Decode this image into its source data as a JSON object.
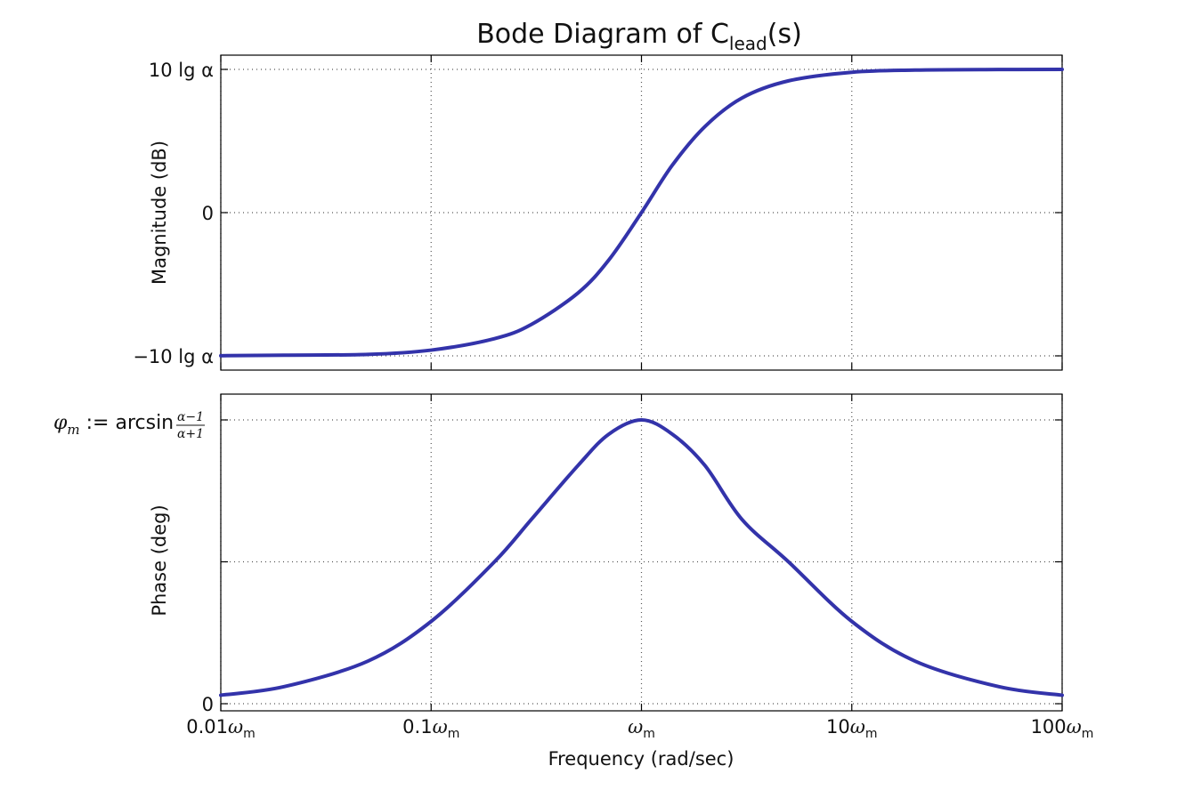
{
  "chart_data": {
    "type": "line",
    "title": "Bode Diagram of C",
    "title_subscript": "lead",
    "title_suffix": "(s)",
    "xlabel": "Frequency (rad/sec)",
    "x_scale": "log",
    "xlim": [
      0.01,
      100
    ],
    "x_ticks": [
      0.01,
      0.1,
      1,
      10,
      100
    ],
    "x_tick_labels": [
      {
        "num": "0.01",
        "sym": "ω",
        "sub": "m"
      },
      {
        "num": "0.1",
        "sym": "ω",
        "sub": "m"
      },
      {
        "num": "",
        "sym": "ω",
        "sub": "m"
      },
      {
        "num": "10",
        "sym": "ω",
        "sub": "m"
      },
      {
        "num": "100",
        "sym": "ω",
        "sub": "m"
      }
    ],
    "grid": true,
    "color": "#3333aa",
    "panels": [
      {
        "name": "magnitude",
        "ylabel": "Magnitude (dB)",
        "ylim": [
          -1,
          1
        ],
        "y_ticks": [
          -1,
          0,
          1
        ],
        "y_tick_labels": [
          "−10 lg α",
          "0",
          "10 lg α"
        ],
        "x": [
          0.01,
          0.02,
          0.05,
          0.1,
          0.2,
          0.3,
          0.5,
          0.7,
          1,
          1.4,
          2,
          3,
          5,
          10,
          20,
          50,
          100
        ],
        "y": [
          -0.999,
          -0.995,
          -0.99,
          -0.96,
          -0.88,
          -0.78,
          -0.56,
          -0.33,
          0,
          0.33,
          0.6,
          0.8,
          0.92,
          0.98,
          0.995,
          0.999,
          1.0
        ]
      },
      {
        "name": "phase",
        "ylabel": "Phase (deg)",
        "ylim": [
          0,
          1
        ],
        "y_ticks": [
          0,
          0.5,
          1
        ],
        "y_tick_labels": [
          "0",
          "",
          ""
        ],
        "annotation": {
          "phi": "φ",
          "sub": "m",
          "assign": " := arcsin ",
          "numerator": "α−1",
          "denominator": "α+1"
        },
        "x": [
          0.01,
          0.02,
          0.05,
          0.1,
          0.2,
          0.3,
          0.5,
          0.7,
          1,
          1.4,
          2,
          3,
          5,
          10,
          20,
          50,
          100
        ],
        "y": [
          0.03,
          0.06,
          0.15,
          0.29,
          0.5,
          0.65,
          0.84,
          0.95,
          1.0,
          0.95,
          0.84,
          0.65,
          0.5,
          0.29,
          0.15,
          0.06,
          0.03
        ]
      }
    ]
  }
}
